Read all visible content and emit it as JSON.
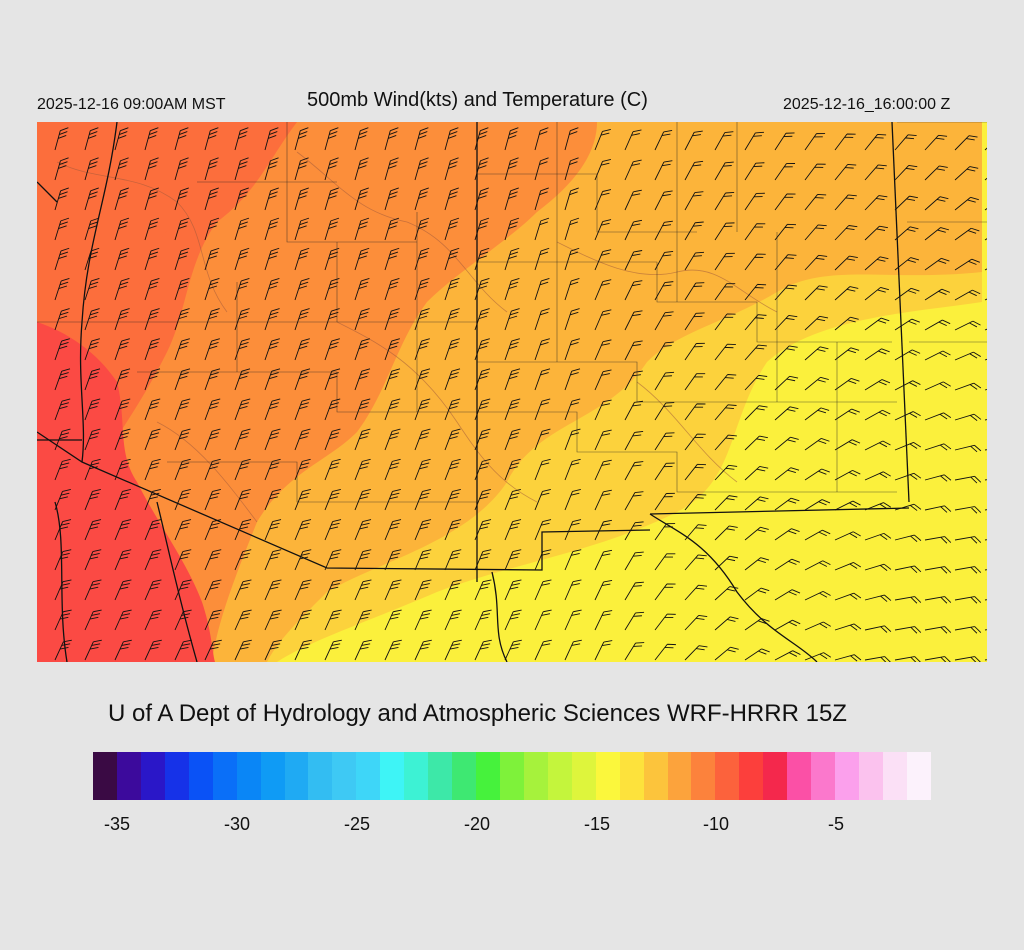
{
  "header": {
    "valid_local": "2025-12-16 09:00AM MST",
    "title": "500mb Wind(kts) and Temperature (C)",
    "valid_utc": "2025-12-16_16:00:00 Z"
  },
  "footer": {
    "credit": "U of A Dept of Hydrology and Atmospheric Sciences WRF-HRRR 15Z"
  },
  "colorbar": {
    "colors": [
      "#3a0a44",
      "#3c0a9c",
      "#2a17c8",
      "#1632e8",
      "#0a52f6",
      "#0a6ff8",
      "#0a86f6",
      "#0f9bf5",
      "#1faaf3",
      "#33bdf2",
      "#3ec9f4",
      "#3ed6f8",
      "#3ef4f6",
      "#3df2d4",
      "#3de8a8",
      "#3ee872",
      "#46f23c",
      "#7ef23a",
      "#a6f23c",
      "#c4f53c",
      "#def53c",
      "#fbf73c",
      "#fde23c",
      "#fcc43c",
      "#fca33c",
      "#fc823c",
      "#fc623c",
      "#fc3f3c",
      "#f4284c",
      "#fb50a6",
      "#fb78cc",
      "#fba0ec",
      "#fbc2ee",
      "#fbe0f6",
      "#fcf2fc"
    ],
    "tick_labels": [
      "-35",
      "-30",
      "-25",
      "-20",
      "-15",
      "-10",
      "-5"
    ]
  },
  "map": {
    "field": "500mb temperature (C) with wind barbs (kts)",
    "fill_colors": {
      "coldest": "#fb4a44",
      "cold": "#fc6e3c",
      "mid": "#fc8e3a",
      "warm": "#fcb43a",
      "warmer": "#fcd23c",
      "warmest": "#fbf03c"
    },
    "line_color": "#111111"
  }
}
